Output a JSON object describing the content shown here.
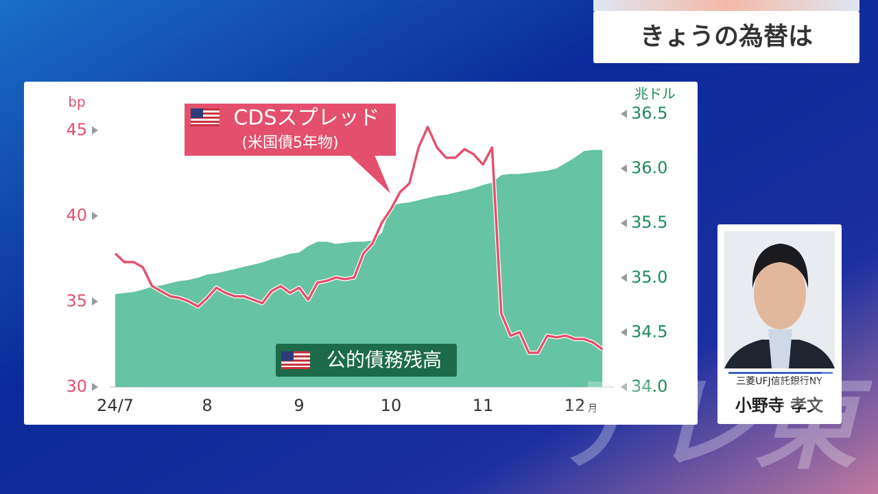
{
  "header": {
    "title": "きょうの為替は"
  },
  "presenter": {
    "company": "三菱UFJ信託銀行NY",
    "name": "小野寺 孝文"
  },
  "watermark": "テレ東",
  "chart_data": {
    "type": "line",
    "ylabel": "bp",
    "y2label": "兆ドル",
    "xunit": "月",
    "annotations": [
      "(米国債5年物)"
    ],
    "categories": [
      "24/7",
      null,
      null,
      null,
      null,
      null,
      null,
      null,
      null,
      null,
      "8",
      null,
      null,
      null,
      null,
      null,
      null,
      null,
      null,
      null,
      "9",
      null,
      null,
      null,
      null,
      null,
      null,
      null,
      null,
      null,
      "10",
      null,
      null,
      null,
      null,
      null,
      null,
      null,
      null,
      null,
      "11",
      null,
      null,
      null,
      null,
      null,
      null,
      null,
      null,
      null,
      "12",
      null,
      null,
      null
    ],
    "series": [
      {
        "name": "公的債務残高",
        "type": "area",
        "axis": "y2",
        "color": "#66c3a3",
        "values": [
          34.85,
          34.86,
          34.87,
          34.89,
          34.92,
          34.93,
          34.95,
          34.97,
          34.98,
          35.0,
          35.03,
          35.04,
          35.06,
          35.08,
          35.1,
          35.12,
          35.14,
          35.17,
          35.19,
          35.22,
          35.23,
          35.29,
          35.33,
          35.33,
          35.31,
          35.32,
          35.33,
          35.33,
          35.34,
          35.41,
          35.66,
          35.68,
          35.69,
          35.71,
          35.73,
          35.75,
          35.76,
          35.78,
          35.8,
          35.82,
          35.85,
          35.87,
          35.94,
          35.95,
          35.95,
          35.96,
          35.97,
          35.98,
          36.0,
          36.05,
          36.1,
          36.16,
          36.17,
          36.17
        ]
      },
      {
        "name": "CDSスプレッド",
        "type": "line",
        "color": "#e4506c",
        "values": [
          37.8,
          37.3,
          37.3,
          37.0,
          35.9,
          35.6,
          35.3,
          35.2,
          35.0,
          34.7,
          35.2,
          35.8,
          35.5,
          35.3,
          35.3,
          35.1,
          34.9,
          35.6,
          35.9,
          35.5,
          35.8,
          35.1,
          36.1,
          36.2,
          36.4,
          36.3,
          36.4,
          37.8,
          38.4,
          39.6,
          40.4,
          41.4,
          41.9,
          44.0,
          45.2,
          44.0,
          43.4,
          43.4,
          43.9,
          43.6,
          43.0,
          44.0,
          34.3,
          33.0,
          33.2,
          32.0,
          32.0,
          33.0,
          32.9,
          33.0,
          32.8,
          32.8,
          32.6,
          32.2
        ]
      }
    ],
    "ylim": [
      30,
      45
    ],
    "yticks": [
      30,
      35,
      40,
      45
    ],
    "y2lim": [
      34,
      36.5
    ],
    "y2ticks": [
      {
        "value": 34,
        "label": "34.0"
      },
      34.5,
      {
        "value": 35,
        "label": "35.0"
      },
      35.5,
      {
        "value": 36,
        "label": "36.0"
      },
      36.5
    ]
  }
}
